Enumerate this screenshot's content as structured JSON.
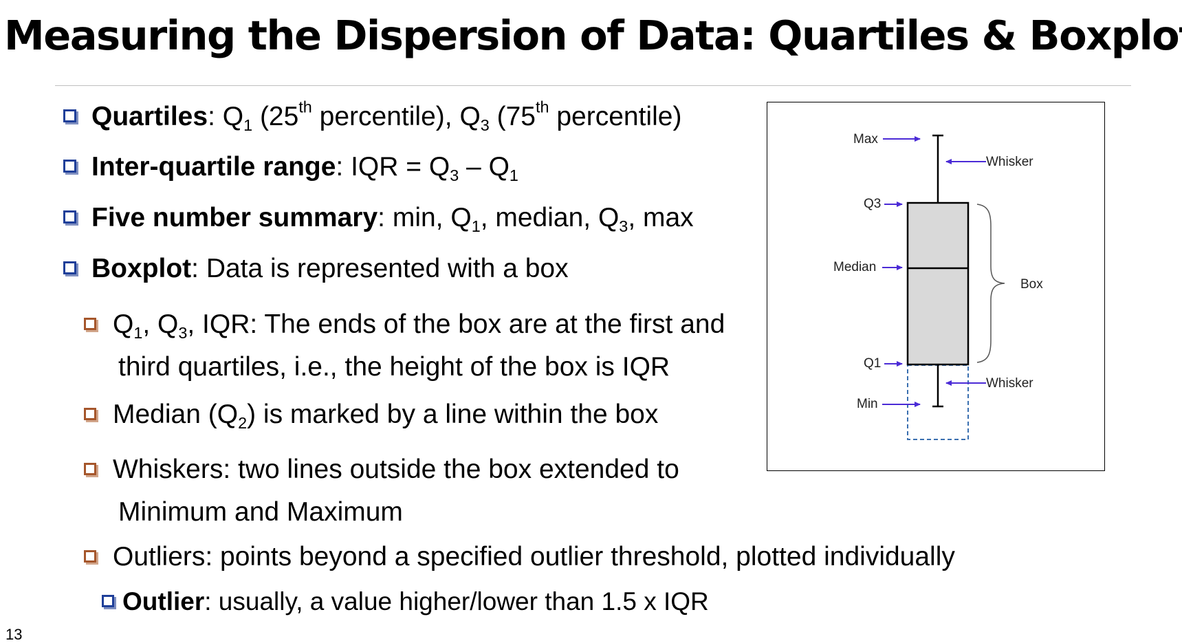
{
  "slide": {
    "title": "Measuring the Dispersion of Data: Quartiles & Boxplots",
    "page_number": "13"
  },
  "bullets": {
    "quartiles": {
      "term": "Quartiles",
      "sep": ": ",
      "q": "Q",
      "sub1": "1",
      "a": " (25",
      "sup1": "th",
      "b": " percentile), ",
      "sub3": "3",
      "c": " (75",
      "sup2": "th",
      "d": " percentile)"
    },
    "iqr": {
      "term": "Inter-quartile range",
      "text": ": IQR = Q",
      "sub3": "3",
      "minus": " – Q",
      "sub1": "1"
    },
    "five": {
      "term": "Five number summary",
      "a": ": min, Q",
      "sub1": "1",
      "b": ", median, Q",
      "sub3": "3",
      "c": ", max"
    },
    "boxplot": {
      "term": "Boxplot",
      "text": ": Data is represented with a box"
    },
    "sub_q": {
      "q": "Q",
      "sub1": "1",
      "a": ", Q",
      "sub3": "3",
      "b": ", IQR:  The ends of the box are at the first and",
      "cont": "third quartiles, i.e., the height of the box is IQR"
    },
    "sub_median": {
      "a": "Median (Q",
      "sub2": "2",
      "b": ") is marked by a line within the box"
    },
    "sub_whiskers": {
      "a": "Whiskers: two lines outside the box extended to",
      "cont": "Minimum and Maximum"
    },
    "sub_outliers": {
      "text": "Outliers: points beyond a specified outlier threshold, plotted individually"
    },
    "subsub_outlier": {
      "term": "Outlier",
      "text": ": usually, a value higher/lower than 1.5 x IQR"
    }
  },
  "diagram": {
    "labels": {
      "max": "Max",
      "q3": "Q3",
      "median": "Median",
      "q1": "Q1",
      "min": "Min",
      "whisker_top": "Whisker",
      "whisker_bottom": "Whisker",
      "box": "Box"
    },
    "colors": {
      "arrow": "#4b2bd6",
      "box_fill": "#d9d9d9",
      "dashed": "#3a6fb0"
    }
  }
}
